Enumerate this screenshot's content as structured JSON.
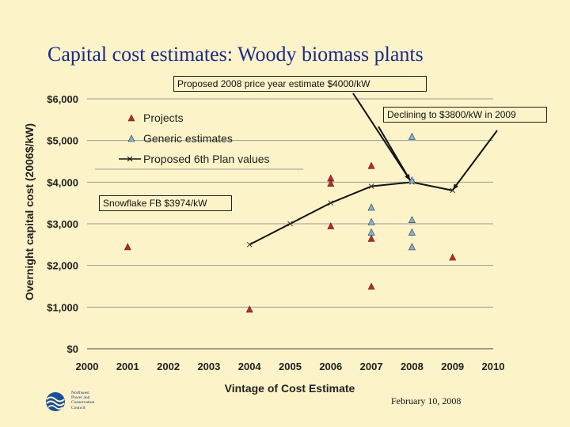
{
  "slide": {
    "title": "Capital cost estimates: Woody biomass plants",
    "date": "February 10, 2008",
    "logo_text": [
      "Northwest",
      "Power and",
      "Conservation",
      "Council"
    ]
  },
  "callouts": [
    {
      "text": "Proposed 2008 price year estimate $4000/kW"
    },
    {
      "text": "Declining to $3800/kW in 2009"
    },
    {
      "text": "Snowflake FB $3974/kW"
    }
  ],
  "colors": {
    "background": "#fdf3c8",
    "title": "#1a2b8c",
    "projects": "#cc2222",
    "generic": "#7fb2d9",
    "plan_line": "#111111"
  },
  "chart_data": {
    "type": "scatter",
    "xlabel": "Vintage of Cost Estimate",
    "ylabel": "Overnight capital cost (2006$/kW)",
    "xlim": [
      2000,
      2010
    ],
    "ylim": [
      0,
      6000
    ],
    "x_ticks": [
      "2000",
      "2001",
      "2002",
      "2003",
      "2004",
      "2005",
      "2006",
      "2007",
      "2008",
      "2009",
      "2010"
    ],
    "y_ticks": [
      "$0",
      "$1,000",
      "$2,000",
      "$3,000",
      "$4,000",
      "$5,000",
      "$6,000"
    ],
    "grid": "horizontal",
    "legend_position": "top-left",
    "series": [
      {
        "name": "Projects",
        "marker": "triangle",
        "color": "#cc2222",
        "points": [
          [
            2001,
            2450
          ],
          [
            2004,
            950
          ],
          [
            2006,
            4100
          ],
          [
            2006,
            3974
          ],
          [
            2006,
            2950
          ],
          [
            2007,
            4400
          ],
          [
            2007,
            2650
          ],
          [
            2007,
            1500
          ],
          [
            2009,
            2200
          ]
        ]
      },
      {
        "name": "Generic estimates",
        "marker": "triangle",
        "color": "#7fb2d9",
        "points": [
          [
            2007,
            3400
          ],
          [
            2007,
            3050
          ],
          [
            2007,
            2800
          ],
          [
            2008,
            5100
          ],
          [
            2008,
            4050
          ],
          [
            2008,
            3100
          ],
          [
            2008,
            2800
          ],
          [
            2008,
            2450
          ]
        ]
      },
      {
        "name": "Proposed 6th Plan values",
        "marker": "x",
        "color": "#111111",
        "points": [
          [
            2004,
            2500
          ],
          [
            2005,
            3000
          ],
          [
            2006,
            3500
          ],
          [
            2007,
            3900
          ],
          [
            2008,
            4000
          ],
          [
            2009,
            3800
          ]
        ]
      }
    ]
  }
}
